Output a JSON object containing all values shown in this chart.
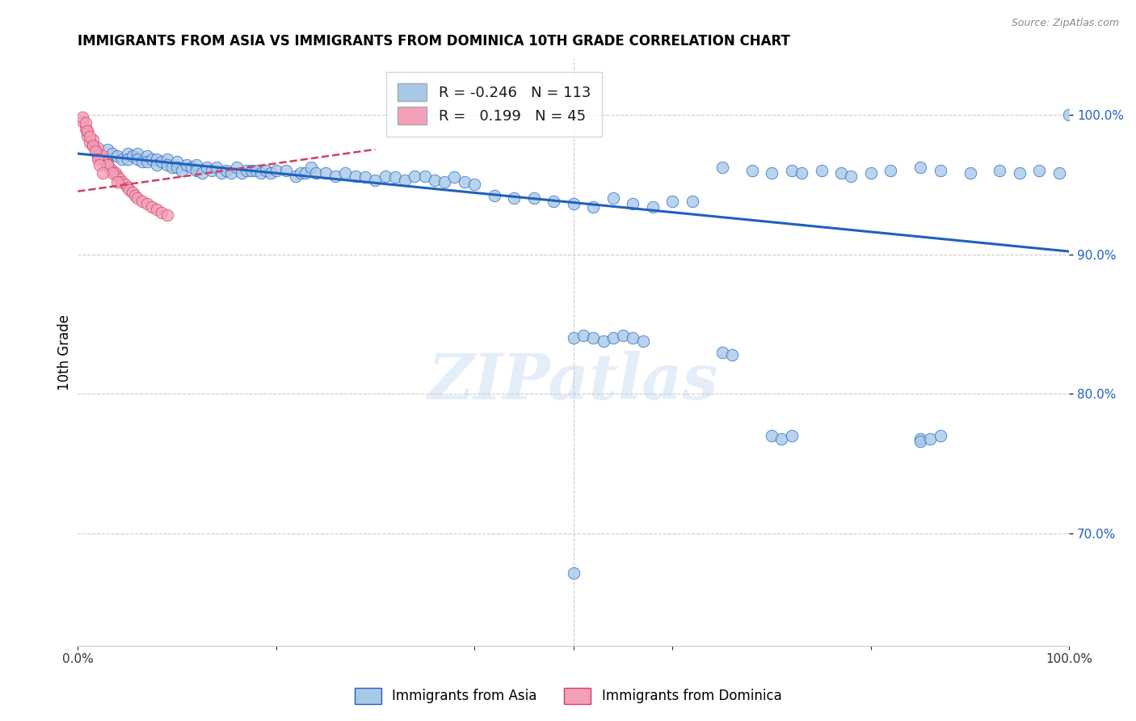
{
  "title": "IMMIGRANTS FROM ASIA VS IMMIGRANTS FROM DOMINICA 10TH GRADE CORRELATION CHART",
  "source": "Source: ZipAtlas.com",
  "ylabel": "10th Grade",
  "ytick_labels": [
    "100.0%",
    "90.0%",
    "80.0%",
    "70.0%"
  ],
  "ytick_values": [
    1.0,
    0.9,
    0.8,
    0.7
  ],
  "xlim": [
    0.0,
    1.0
  ],
  "ylim": [
    0.62,
    1.04
  ],
  "legend_r_asia": "-0.246",
  "legend_n_asia": "113",
  "legend_r_dom": "0.199",
  "legend_n_dom": "45",
  "color_asia": "#a8c8e8",
  "color_dom": "#f4a0b8",
  "trendline_asia_color": "#2060c0",
  "trendline_dom_color": "#d04060",
  "background_color": "#ffffff",
  "watermark": "ZIPatlas",
  "asia_trendline_x": [
    0.0,
    1.0
  ],
  "asia_trendline_y": [
    0.972,
    0.902
  ],
  "dom_trendline_x": [
    0.0,
    0.3
  ],
  "dom_trendline_y": [
    0.945,
    0.975
  ],
  "asia_x": [
    0.02,
    0.03,
    0.03,
    0.035,
    0.04,
    0.045,
    0.05,
    0.05,
    0.055,
    0.06,
    0.06,
    0.065,
    0.07,
    0.07,
    0.075,
    0.08,
    0.08,
    0.085,
    0.09,
    0.09,
    0.095,
    0.1,
    0.1,
    0.105,
    0.11,
    0.115,
    0.12,
    0.12,
    0.125,
    0.13,
    0.135,
    0.14,
    0.145,
    0.15,
    0.155,
    0.16,
    0.165,
    0.17,
    0.175,
    0.18,
    0.185,
    0.19,
    0.195,
    0.2,
    0.21,
    0.22,
    0.225,
    0.23,
    0.235,
    0.24,
    0.25,
    0.26,
    0.27,
    0.28,
    0.29,
    0.3,
    0.31,
    0.32,
    0.33,
    0.34,
    0.35,
    0.36,
    0.37,
    0.38,
    0.39,
    0.4,
    0.42,
    0.44,
    0.46,
    0.48,
    0.5,
    0.52,
    0.54,
    0.56,
    0.58,
    0.6,
    0.62,
    0.65,
    0.68,
    0.7,
    0.72,
    0.73,
    0.75,
    0.77,
    0.78,
    0.8,
    0.82,
    0.85,
    0.87,
    0.9,
    0.93,
    0.95,
    0.97,
    0.99,
    1.0,
    0.65,
    0.66,
    0.5,
    0.51,
    0.52,
    0.53,
    0.54,
    0.55,
    0.56,
    0.57,
    0.7,
    0.71,
    0.72,
    0.85,
    0.85,
    0.86,
    0.87,
    0.5
  ],
  "asia_y": [
    0.97,
    0.975,
    0.968,
    0.972,
    0.97,
    0.968,
    0.972,
    0.968,
    0.97,
    0.972,
    0.968,
    0.966,
    0.97,
    0.966,
    0.968,
    0.968,
    0.964,
    0.966,
    0.968,
    0.964,
    0.962,
    0.966,
    0.962,
    0.96,
    0.964,
    0.962,
    0.964,
    0.96,
    0.958,
    0.962,
    0.96,
    0.962,
    0.958,
    0.96,
    0.958,
    0.962,
    0.958,
    0.96,
    0.96,
    0.96,
    0.958,
    0.96,
    0.958,
    0.96,
    0.96,
    0.956,
    0.958,
    0.958,
    0.962,
    0.958,
    0.958,
    0.956,
    0.958,
    0.956,
    0.955,
    0.953,
    0.956,
    0.955,
    0.953,
    0.956,
    0.956,
    0.953,
    0.952,
    0.955,
    0.952,
    0.95,
    0.942,
    0.94,
    0.94,
    0.938,
    0.936,
    0.934,
    0.94,
    0.936,
    0.934,
    0.938,
    0.938,
    0.962,
    0.96,
    0.958,
    0.96,
    0.958,
    0.96,
    0.958,
    0.956,
    0.958,
    0.96,
    0.962,
    0.96,
    0.958,
    0.96,
    0.958,
    0.96,
    0.958,
    1.0,
    0.83,
    0.828,
    0.84,
    0.842,
    0.84,
    0.838,
    0.84,
    0.842,
    0.84,
    0.838,
    0.77,
    0.768,
    0.77,
    0.768,
    0.766,
    0.768,
    0.77,
    0.672
  ],
  "dom_x": [
    0.005,
    0.008,
    0.01,
    0.012,
    0.015,
    0.018,
    0.02,
    0.022,
    0.025,
    0.028,
    0.03,
    0.032,
    0.035,
    0.038,
    0.04,
    0.042,
    0.045,
    0.048,
    0.05,
    0.052,
    0.055,
    0.058,
    0.06,
    0.065,
    0.07,
    0.075,
    0.08,
    0.085,
    0.09,
    0.01,
    0.015,
    0.02,
    0.025,
    0.03,
    0.035,
    0.04,
    0.005,
    0.008,
    0.01,
    0.012,
    0.015,
    0.018,
    0.02,
    0.022,
    0.025
  ],
  "dom_y": [
    0.995,
    0.99,
    0.985,
    0.98,
    0.978,
    0.975,
    0.972,
    0.97,
    0.968,
    0.966,
    0.964,
    0.962,
    0.96,
    0.958,
    0.956,
    0.954,
    0.952,
    0.95,
    0.948,
    0.946,
    0.944,
    0.942,
    0.94,
    0.938,
    0.936,
    0.934,
    0.932,
    0.93,
    0.928,
    0.988,
    0.982,
    0.976,
    0.97,
    0.964,
    0.958,
    0.952,
    0.998,
    0.994,
    0.988,
    0.984,
    0.978,
    0.974,
    0.968,
    0.964,
    0.958
  ]
}
